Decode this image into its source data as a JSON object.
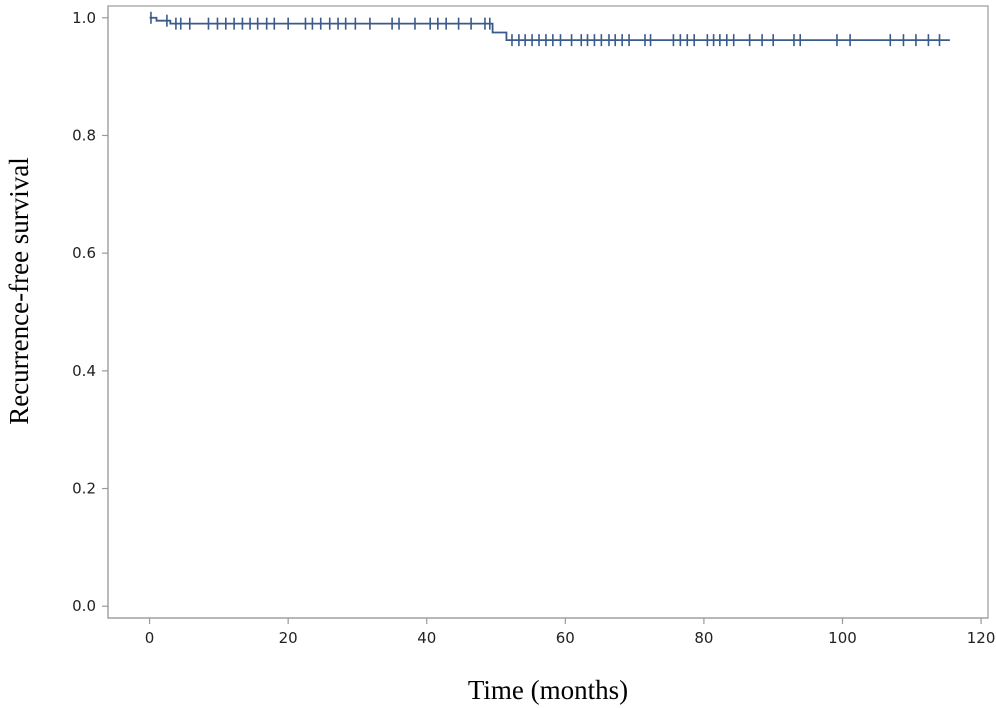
{
  "chart_data": {
    "type": "line",
    "title": "",
    "xlabel": "Time (months)",
    "ylabel": "Recurrence-free survival",
    "xlim": [
      -6,
      121
    ],
    "ylim": [
      -0.02,
      1.02
    ],
    "xticks": [
      0,
      20,
      40,
      60,
      80,
      100,
      120
    ],
    "yticks": [
      0.0,
      0.2,
      0.4,
      0.6,
      0.8,
      1.0
    ],
    "ytick_labels": [
      "0.0",
      "0.2",
      "0.4",
      "0.6",
      "0.8",
      "1.0"
    ],
    "grid": false,
    "line_color": "#3a5a8c",
    "series": [
      {
        "step": [
          [
            0,
            1.0
          ],
          [
            1,
            1.0
          ],
          [
            1,
            0.995
          ],
          [
            3,
            0.995
          ],
          [
            3,
            0.99
          ],
          [
            49.5,
            0.99
          ],
          [
            49.5,
            0.975
          ],
          [
            51.5,
            0.975
          ],
          [
            51.5,
            0.962
          ],
          [
            115.5,
            0.962
          ]
        ],
        "censored": [
          [
            0.2,
            1.0
          ],
          [
            2.5,
            0.995
          ],
          [
            3.8,
            0.99
          ],
          [
            4.5,
            0.99
          ],
          [
            5.8,
            0.99
          ],
          [
            8.5,
            0.99
          ],
          [
            9.8,
            0.99
          ],
          [
            11,
            0.99
          ],
          [
            12.2,
            0.99
          ],
          [
            13.4,
            0.99
          ],
          [
            14.5,
            0.99
          ],
          [
            15.6,
            0.99
          ],
          [
            16.9,
            0.99
          ],
          [
            18,
            0.99
          ],
          [
            20,
            0.99
          ],
          [
            22.5,
            0.99
          ],
          [
            23.5,
            0.99
          ],
          [
            24.7,
            0.99
          ],
          [
            26,
            0.99
          ],
          [
            27.2,
            0.99
          ],
          [
            28.3,
            0.99
          ],
          [
            29.7,
            0.99
          ],
          [
            31.8,
            0.99
          ],
          [
            35,
            0.99
          ],
          [
            36,
            0.99
          ],
          [
            38.3,
            0.99
          ],
          [
            40.5,
            0.99
          ],
          [
            41.6,
            0.99
          ],
          [
            42.8,
            0.99
          ],
          [
            44.6,
            0.99
          ],
          [
            46.4,
            0.99
          ],
          [
            48.4,
            0.99
          ],
          [
            49.1,
            0.99
          ],
          [
            52.3,
            0.962
          ],
          [
            53.3,
            0.962
          ],
          [
            54.2,
            0.962
          ],
          [
            55.2,
            0.962
          ],
          [
            56.2,
            0.962
          ],
          [
            57.2,
            0.962
          ],
          [
            58.2,
            0.962
          ],
          [
            59.3,
            0.962
          ],
          [
            60.9,
            0.962
          ],
          [
            62.3,
            0.962
          ],
          [
            63.2,
            0.962
          ],
          [
            64.2,
            0.962
          ],
          [
            65.2,
            0.962
          ],
          [
            66.3,
            0.962
          ],
          [
            67.2,
            0.962
          ],
          [
            68.2,
            0.962
          ],
          [
            69.2,
            0.962
          ],
          [
            71.5,
            0.962
          ],
          [
            72.3,
            0.962
          ],
          [
            75.6,
            0.962
          ],
          [
            76.6,
            0.962
          ],
          [
            77.6,
            0.962
          ],
          [
            78.6,
            0.962
          ],
          [
            80.5,
            0.962
          ],
          [
            81.4,
            0.962
          ],
          [
            82.3,
            0.962
          ],
          [
            83.3,
            0.962
          ],
          [
            84.3,
            0.962
          ],
          [
            86.6,
            0.962
          ],
          [
            88.4,
            0.962
          ],
          [
            90,
            0.962
          ],
          [
            93,
            0.962
          ],
          [
            93.9,
            0.962
          ],
          [
            99.2,
            0.962
          ],
          [
            101.1,
            0.962
          ],
          [
            106.9,
            0.962
          ],
          [
            108.8,
            0.962
          ],
          [
            110.6,
            0.962
          ],
          [
            112.4,
            0.962
          ],
          [
            114,
            0.962
          ]
        ]
      }
    ]
  }
}
